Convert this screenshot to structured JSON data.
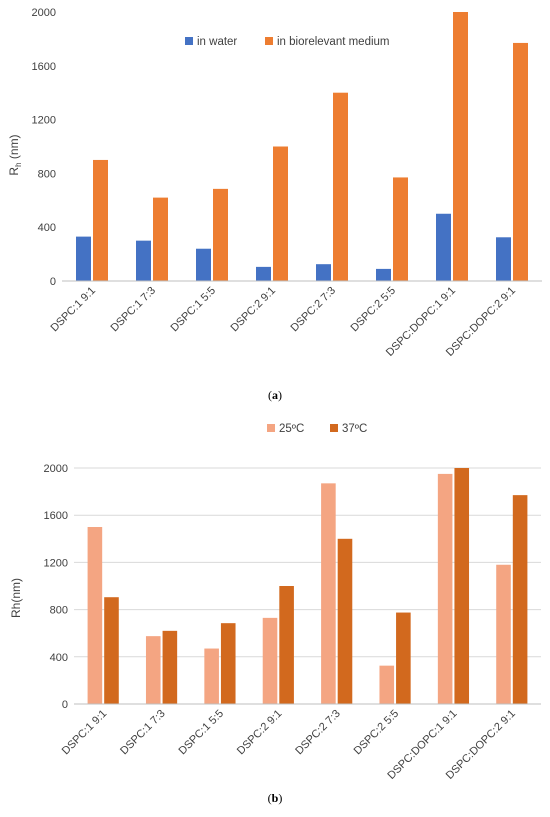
{
  "chart_data": [
    {
      "type": "bar",
      "ylabel": "R",
      "ylabel_sub": "h",
      "ylabel_unit": " (nm)",
      "ylim": [
        0,
        2000
      ],
      "yticks": [
        0,
        400,
        800,
        1200,
        1600,
        2000
      ],
      "grid": false,
      "legend_position": "top",
      "caption_open": "(",
      "caption_letter": "a",
      "caption_close": ")",
      "categories": [
        "DSPC:1 9:1",
        "DSPC:1 7:3",
        "DSPC:1 5:5",
        "DSPC:2 9:1",
        "DSPC:2 7:3",
        "DSPC:2 5:5",
        "DSPC:DOPC:1 9:1",
        "DSPC:DOPC:2 9:1"
      ],
      "series": [
        {
          "name": "in water",
          "color": "#4472C4",
          "values": [
            330,
            300,
            240,
            105,
            125,
            90,
            500,
            325
          ]
        },
        {
          "name": "in biorelevant medium",
          "color": "#ED7D31",
          "values": [
            900,
            620,
            685,
            1000,
            1400,
            770,
            2000,
            1770
          ]
        }
      ]
    },
    {
      "type": "bar",
      "ylabel": "Rh",
      "ylabel_unit": "(nm)",
      "ylim": [
        0,
        2000
      ],
      "yticks": [
        0,
        400,
        800,
        1200,
        1600,
        2000
      ],
      "grid": true,
      "legend_position": "top",
      "caption_open": "(",
      "caption_letter": "b",
      "caption_close": ")",
      "categories": [
        "DSPC:1 9:1",
        "DSPC:1 7:3",
        "DSPC:1 5:5",
        "DSPC:2 9:1",
        "DSPC:2 7:3",
        "DSPC:2 5:5",
        "DSPC:DOPC:1 9:1",
        "DSPC:DOPC:2 9:1"
      ],
      "series": [
        {
          "name": "25ºC",
          "color": "#F4A582",
          "values": [
            1500,
            575,
            470,
            730,
            1870,
            325,
            1950,
            1180
          ]
        },
        {
          "name": "37ºC",
          "color": "#D2691E",
          "values": [
            905,
            620,
            685,
            1000,
            1400,
            775,
            2000,
            1770
          ]
        }
      ]
    }
  ]
}
